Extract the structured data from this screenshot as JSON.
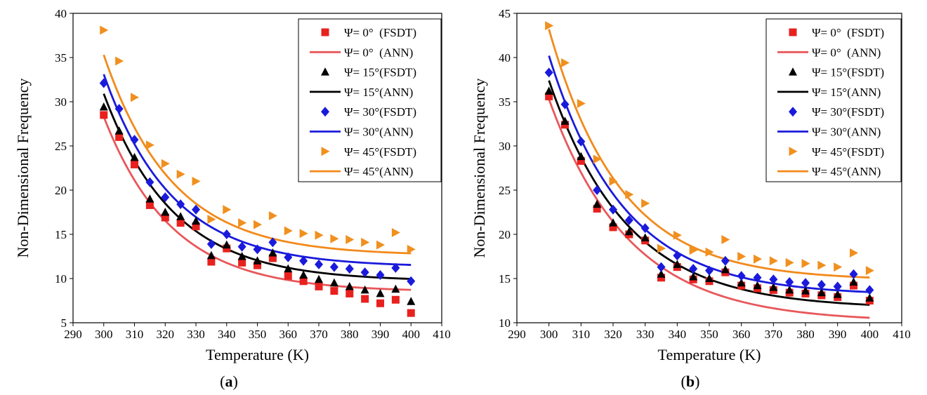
{
  "chart_data": [
    {
      "id": "a",
      "type": "scatter",
      "caption_letter": "a",
      "xlabel": "Temperature (K)",
      "ylabel": "Non-Dimensional Frequency",
      "xlim": [
        290,
        410
      ],
      "ylim": [
        5,
        40
      ],
      "xticks": [
        290,
        300,
        310,
        320,
        330,
        340,
        350,
        360,
        370,
        380,
        390,
        400,
        410
      ],
      "yticks": [
        5,
        10,
        15,
        20,
        25,
        30,
        35,
        40
      ],
      "legend_position": "top-right",
      "x": [
        300,
        305,
        310,
        315,
        320,
        325,
        330,
        335,
        340,
        345,
        350,
        355,
        360,
        365,
        370,
        375,
        380,
        385,
        390,
        395,
        400
      ],
      "series": [
        {
          "name": "Ψ= 0°  (FSDT)",
          "kind": "scatter",
          "marker": "square",
          "color": "#e8211e",
          "values": [
            28.5,
            26.0,
            22.9,
            18.3,
            16.9,
            16.3,
            15.9,
            11.9,
            13.4,
            11.8,
            11.5,
            12.3,
            10.3,
            9.7,
            9.1,
            8.6,
            8.3,
            7.7,
            7.2,
            7.6,
            6.1
          ]
        },
        {
          "name": "Ψ= 0°  (ANN)",
          "kind": "line",
          "color": "#e8575a",
          "ann": {
            "a": 19.8,
            "b": 0.045,
            "c": 8.5
          }
        },
        {
          "name": "Ψ= 15°(FSDT)",
          "kind": "scatter",
          "marker": "triangle",
          "color": "#000000",
          "values": [
            29.4,
            26.7,
            23.7,
            19.0,
            17.5,
            17.0,
            16.5,
            12.6,
            13.8,
            12.5,
            12.0,
            12.9,
            11.1,
            10.4,
            9.9,
            9.5,
            9.1,
            8.7,
            8.3,
            8.8,
            7.4
          ]
        },
        {
          "name": "Ψ= 15°(ANN)",
          "kind": "line",
          "color": "#000000",
          "ann": {
            "a": 21.2,
            "b": 0.044,
            "c": 9.7
          }
        },
        {
          "name": "Ψ= 30°(FSDT)",
          "kind": "scatter",
          "marker": "diamond",
          "color": "#1a1adc",
          "values": [
            32.1,
            29.2,
            25.7,
            20.9,
            19.2,
            18.4,
            17.8,
            13.9,
            15.0,
            13.6,
            13.3,
            14.1,
            12.4,
            12.0,
            11.6,
            11.3,
            11.1,
            10.7,
            10.4,
            11.2,
            9.7
          ]
        },
        {
          "name": "Ψ= 30°(ANN)",
          "kind": "line",
          "color": "#1a1adc",
          "ann": {
            "a": 21.8,
            "b": 0.045,
            "c": 11.3
          }
        },
        {
          "name": "Ψ= 45°(FSDT)",
          "kind": "scatter",
          "marker": "triangle-right",
          "color": "#f0901f",
          "values": [
            38.1,
            34.6,
            30.5,
            25.1,
            23.0,
            21.8,
            21.0,
            16.7,
            17.8,
            16.3,
            16.1,
            17.1,
            15.4,
            15.1,
            14.9,
            14.5,
            14.4,
            14.1,
            13.8,
            15.2,
            13.3
          ]
        },
        {
          "name": "Ψ= 45°(ANN)",
          "kind": "line",
          "color": "#f28a1b",
          "ann": {
            "a": 22.7,
            "b": 0.045,
            "c": 12.6
          }
        }
      ]
    },
    {
      "id": "b",
      "type": "scatter",
      "caption_letter": "b",
      "xlabel": "Temperature (K)",
      "ylabel": "Non-Dimensional Frequency",
      "xlim": [
        290,
        410
      ],
      "ylim": [
        10,
        45
      ],
      "xticks": [
        290,
        300,
        310,
        320,
        330,
        340,
        350,
        360,
        370,
        380,
        390,
        400,
        410
      ],
      "yticks": [
        10,
        15,
        20,
        25,
        30,
        35,
        40,
        45
      ],
      "legend_position": "top-right",
      "x": [
        300,
        305,
        310,
        315,
        320,
        325,
        330,
        335,
        340,
        345,
        350,
        355,
        360,
        365,
        370,
        375,
        380,
        385,
        390,
        395,
        400
      ],
      "series": [
        {
          "name": "Ψ= 0°  (FSDT)",
          "kind": "scatter",
          "marker": "square",
          "color": "#e8211e",
          "values": [
            35.6,
            32.4,
            28.3,
            22.9,
            20.8,
            20.0,
            19.3,
            15.1,
            16.3,
            14.9,
            14.7,
            15.7,
            14.2,
            13.9,
            13.7,
            13.4,
            13.3,
            13.1,
            12.9,
            14.2,
            12.5
          ]
        },
        {
          "name": "Ψ= 0°  (ANN)",
          "kind": "line",
          "color": "#e8575a",
          "ann": {
            "a": 25.2,
            "b": 0.04,
            "c": 10.1
          }
        },
        {
          "name": "Ψ= 15°(FSDT)",
          "kind": "scatter",
          "marker": "triangle",
          "color": "#000000",
          "values": [
            36.2,
            32.8,
            28.8,
            23.4,
            21.3,
            20.3,
            19.6,
            15.5,
            16.6,
            15.2,
            15.0,
            16.0,
            14.5,
            14.2,
            14.0,
            13.7,
            13.6,
            13.4,
            13.2,
            14.6,
            12.8
          ]
        },
        {
          "name": "Ψ= 15°(ANN)",
          "kind": "line",
          "color": "#000000",
          "ann": {
            "a": 25.8,
            "b": 0.041,
            "c": 11.6
          }
        },
        {
          "name": "Ψ= 30°(FSDT)",
          "kind": "scatter",
          "marker": "diamond",
          "color": "#1a1adc",
          "values": [
            38.3,
            34.7,
            30.5,
            25.0,
            22.8,
            21.6,
            20.7,
            16.3,
            17.6,
            16.1,
            15.9,
            17.0,
            15.3,
            15.1,
            14.9,
            14.6,
            14.5,
            14.3,
            14.1,
            15.5,
            13.7
          ]
        },
        {
          "name": "Ψ= 30°(ANN)",
          "kind": "line",
          "color": "#1a1adc",
          "ann": {
            "a": 27.1,
            "b": 0.043,
            "c": 13.1
          }
        },
        {
          "name": "Ψ= 45°(FSDT)",
          "kind": "scatter",
          "marker": "triangle-right",
          "color": "#f0901f",
          "values": [
            43.6,
            39.4,
            34.8,
            28.5,
            26.0,
            24.5,
            23.5,
            18.4,
            19.9,
            18.2,
            18.0,
            19.4,
            17.5,
            17.2,
            17.0,
            16.8,
            16.7,
            16.5,
            16.3,
            17.9,
            15.9
          ]
        },
        {
          "name": "Ψ= 45°(ANN)",
          "kind": "line",
          "color": "#f28a1b",
          "ann": {
            "a": 28.4,
            "b": 0.045,
            "c": 14.8
          }
        }
      ]
    }
  ]
}
